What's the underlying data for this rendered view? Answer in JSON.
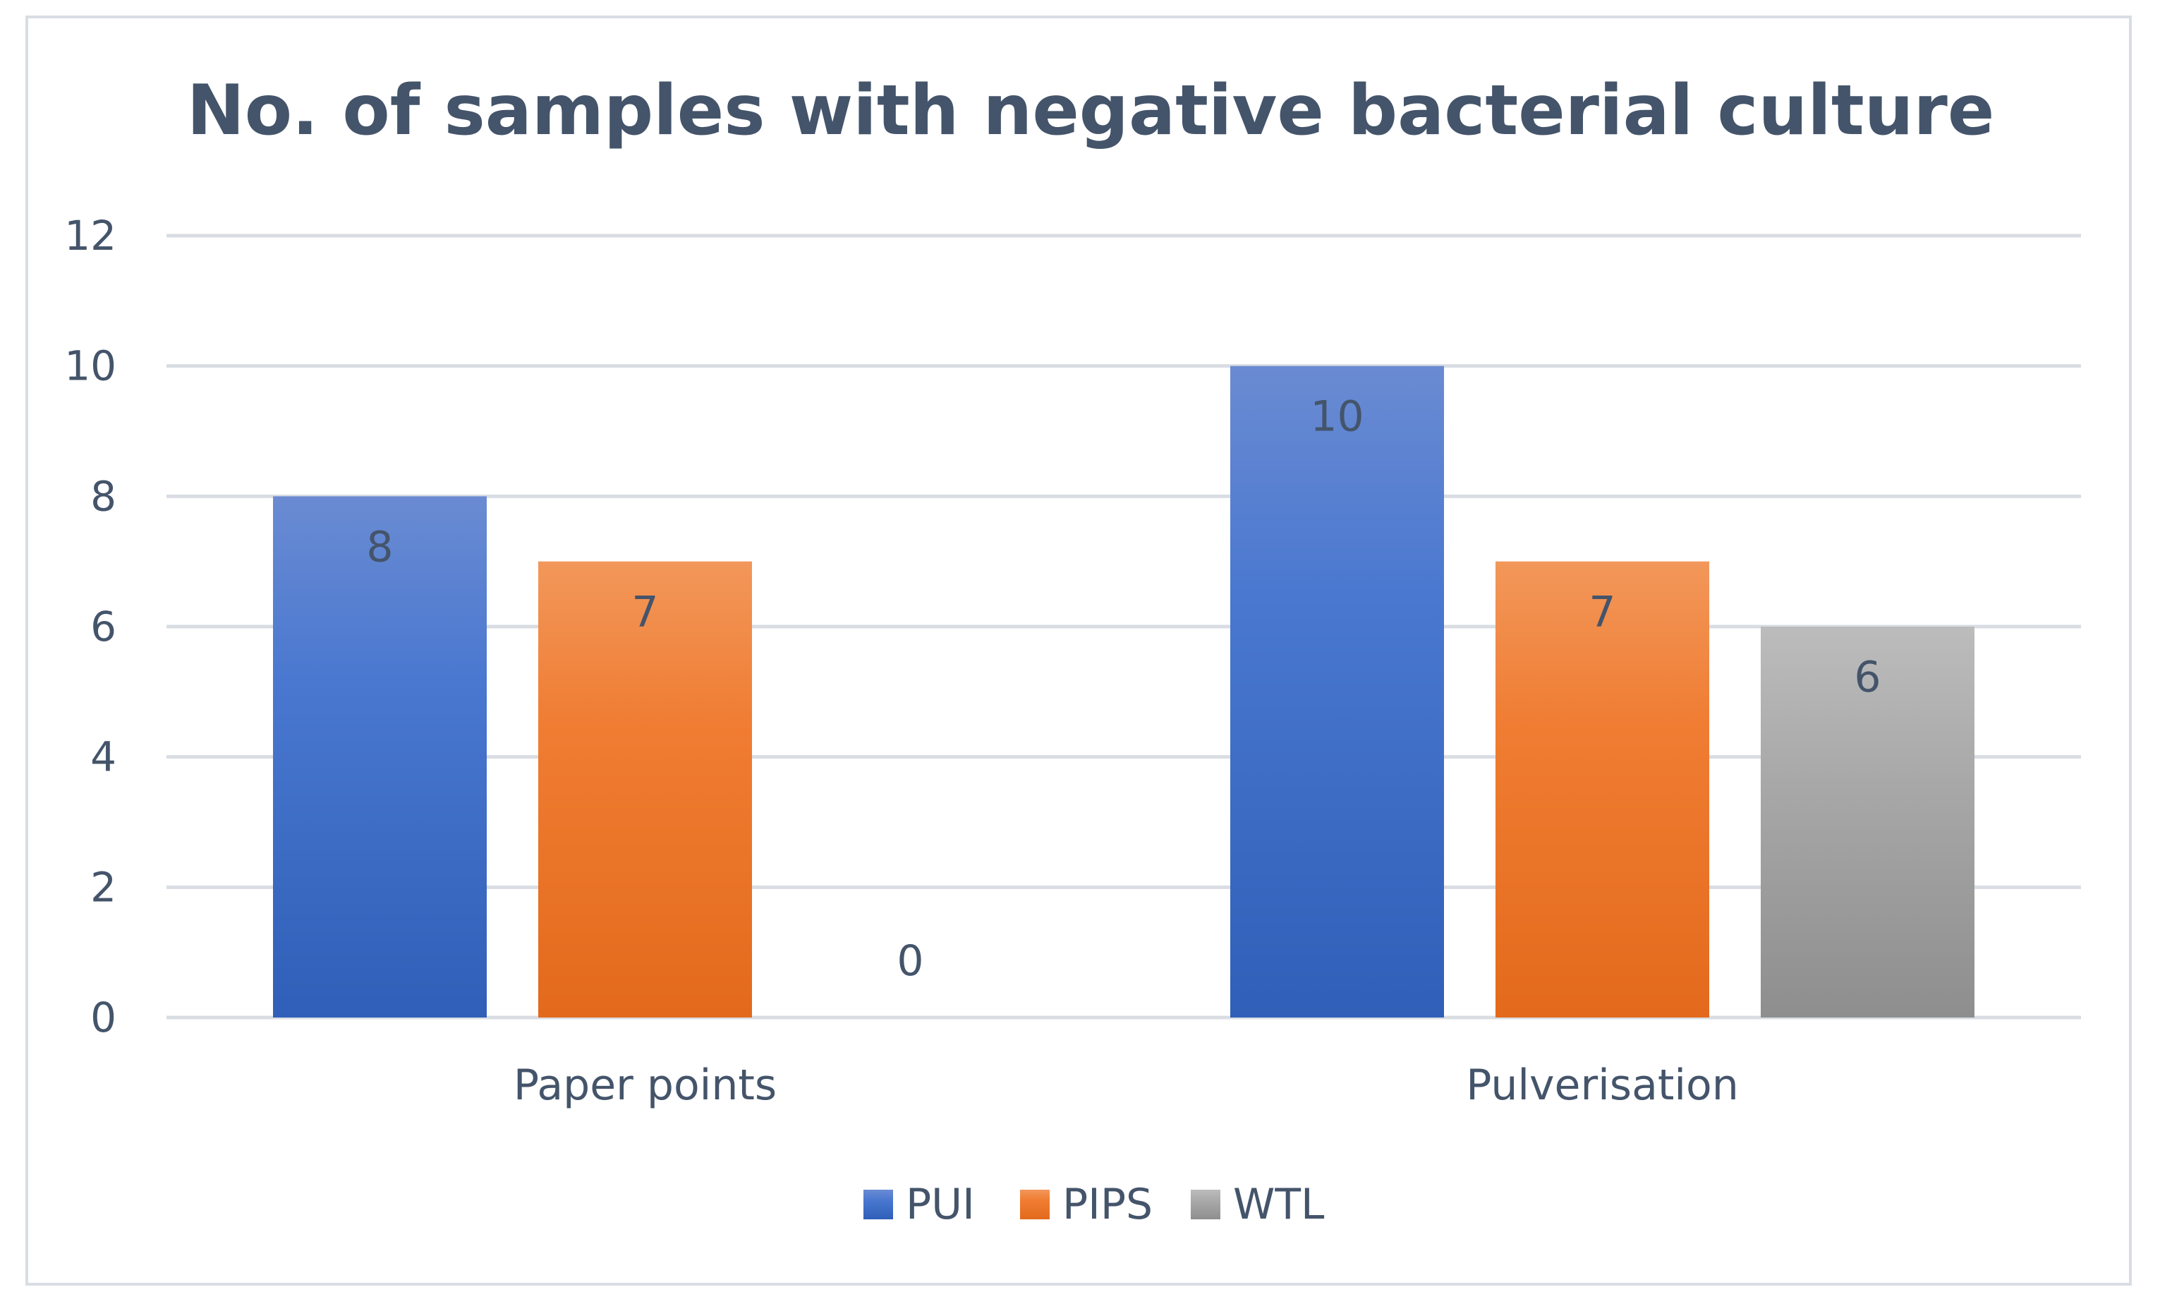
{
  "chart_data": {
    "type": "bar",
    "title": "No. of samples with negative bacterial culture",
    "xlabel": "",
    "ylabel": "",
    "categories": [
      "Paper points",
      "Pulverisation"
    ],
    "series": [
      {
        "name": "PUI",
        "values": [
          8,
          10
        ],
        "color": "#3b68c8"
      },
      {
        "name": "PIPS",
        "values": [
          7,
          7
        ],
        "color": "#ed7d31"
      },
      {
        "name": "WTL",
        "values": [
          0,
          6
        ],
        "color": "#a5a5a5"
      }
    ],
    "ylim": [
      0,
      12
    ],
    "yticks": [
      0,
      2,
      4,
      6,
      8,
      10,
      12
    ],
    "grid": true,
    "legend_position": "bottom-center",
    "data_labels": true
  }
}
